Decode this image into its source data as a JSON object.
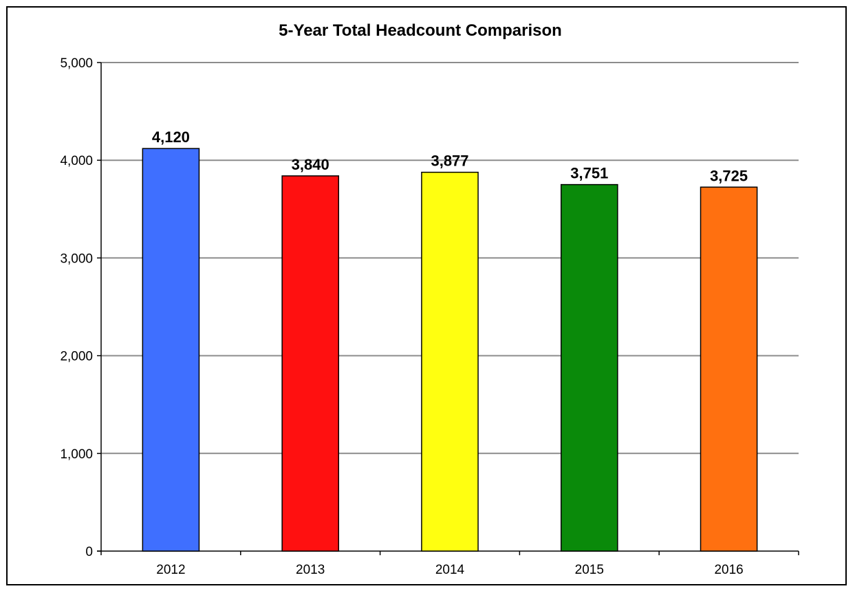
{
  "chart_data": {
    "type": "bar",
    "title": "5-Year Total Headcount Comparison",
    "xlabel": "",
    "ylabel": "",
    "categories": [
      "2012",
      "2013",
      "2014",
      "2015",
      "2016"
    ],
    "values": [
      4120,
      3840,
      3877,
      3751,
      3725
    ],
    "data_labels": [
      "4,120",
      "3,840",
      "3,877",
      "3,751",
      "3,725"
    ],
    "bar_colors": [
      "#3f6fff",
      "#ff1010",
      "#ffff10",
      "#0a8a0a",
      "#ff7010"
    ],
    "ylim": [
      0,
      5000
    ],
    "y_ticks": [
      0,
      1000,
      2000,
      3000,
      4000,
      5000
    ],
    "y_tick_labels": [
      "0",
      "1,000",
      "2,000",
      "3,000",
      "4,000",
      "5,000"
    ],
    "grid": true,
    "grid_color": "#8c8c8c",
    "legend": "none"
  }
}
